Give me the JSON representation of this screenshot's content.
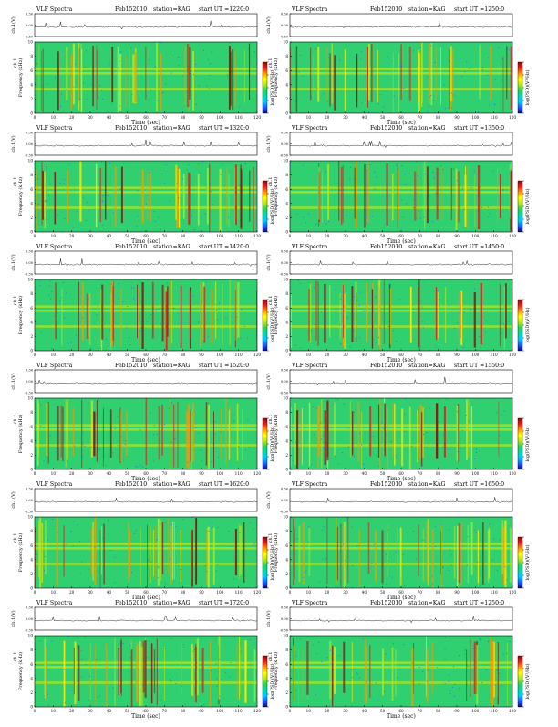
{
  "colors": {
    "background": "#ffffff",
    "axis": "#000000",
    "colorbar_stops": [
      "#0a0a8c",
      "#1e5aff",
      "#00c8ff",
      "#00d8b4",
      "#28d25a",
      "#b4e61e",
      "#ffff00",
      "#ff9600",
      "#e61e1e",
      "#8c0a0a"
    ],
    "spectrum_base": "#30d070",
    "burst_colors": [
      "#e02020",
      "#ffe600",
      "#b4e61e",
      "#ff9600",
      "#8c1010"
    ]
  },
  "labels": {
    "x_title": "Time (sec)",
    "upper_ylabel": "ch.1(V)",
    "lower_ylabel_top": "ch.1",
    "lower_ylabel_bottom": "Frequency (kHz)",
    "colorbar_label": "log(PSD)(V²/Hz)"
  },
  "chart_data": [
    {
      "type": "heatmap",
      "title": "VLF Spectra",
      "date": "Feb152010",
      "station": "station=KAG",
      "start": "start UT =1220:0",
      "xlim": [
        0,
        120
      ],
      "ylim": [
        0,
        10
      ],
      "upper_ylim": [
        -0.3,
        0.3
      ],
      "x_ticks": [
        "0",
        "10",
        "20",
        "30",
        "40",
        "50",
        "60",
        "70",
        "80",
        "90",
        "100",
        "110",
        "120"
      ],
      "y_ticks": [
        "0",
        "2",
        "4",
        "6",
        "8",
        "10"
      ],
      "upper_ticks": [
        "0.30",
        "0.00",
        "-0.30"
      ],
      "colorbar_ticks": [
        "",
        "",
        "",
        "",
        ""
      ]
    },
    {
      "type": "heatmap",
      "title": "VLF Spectra",
      "date": "Feb152010",
      "station": "station=KAG",
      "start": "start UT =1250:0",
      "xlim": [
        0,
        120
      ],
      "ylim": [
        0,
        10
      ],
      "upper_ylim": [
        -0.3,
        0.3
      ],
      "x_ticks": [
        "0",
        "10",
        "20",
        "30",
        "40",
        "50",
        "60",
        "70",
        "80",
        "90",
        "100",
        "110",
        "120"
      ],
      "y_ticks": [
        "0",
        "2",
        "4",
        "6",
        "8",
        "10"
      ],
      "upper_ticks": [
        "0.30",
        "0.00",
        "-0.30"
      ],
      "colorbar_ticks": [
        "",
        "",
        "",
        "",
        ""
      ]
    },
    {
      "type": "heatmap",
      "title": "VLF Spectra",
      "date": "Feb152010",
      "station": "station=KAG",
      "start": "start UT =1320:0",
      "xlim": [
        0,
        120
      ],
      "ylim": [
        0,
        10
      ],
      "upper_ylim": [
        -0.3,
        0.3
      ],
      "x_ticks": [
        "0",
        "10",
        "20",
        "30",
        "40",
        "50",
        "60",
        "70",
        "80",
        "90",
        "100",
        "110",
        "120"
      ],
      "y_ticks": [
        "0",
        "2",
        "4",
        "6",
        "8",
        "10"
      ],
      "upper_ticks": [
        "0.30",
        "0.00",
        "-0.30"
      ],
      "colorbar_ticks": [
        "",
        "",
        "",
        "",
        ""
      ]
    },
    {
      "type": "heatmap",
      "title": "VLF Spectra",
      "date": "Feb152010",
      "station": "station=KAG",
      "start": "start UT =1350:0",
      "xlim": [
        0,
        120
      ],
      "ylim": [
        0,
        10
      ],
      "upper_ylim": [
        -0.3,
        0.3
      ],
      "x_ticks": [
        "0",
        "10",
        "20",
        "30",
        "40",
        "50",
        "60",
        "70",
        "80",
        "90",
        "100",
        "110",
        "120"
      ],
      "y_ticks": [
        "0",
        "2",
        "4",
        "6",
        "8",
        "10"
      ],
      "upper_ticks": [
        "0.30",
        "0.00",
        "-0.30"
      ],
      "colorbar_ticks": [
        "",
        "",
        "",
        "",
        ""
      ]
    },
    {
      "type": "heatmap",
      "title": "VLF Spectra",
      "date": "Feb152010",
      "station": "station=KAG",
      "start": "start UT =1420:0",
      "xlim": [
        0,
        120
      ],
      "ylim": [
        0,
        10
      ],
      "upper_ylim": [
        -0.3,
        0.3
      ],
      "x_ticks": [
        "0",
        "10",
        "20",
        "30",
        "40",
        "50",
        "60",
        "70",
        "80",
        "90",
        "100",
        "110",
        "120"
      ],
      "y_ticks": [
        "0",
        "2",
        "4",
        "6",
        "8",
        "10"
      ],
      "upper_ticks": [
        "0.30",
        "0.00",
        "-0.30"
      ],
      "colorbar_ticks": [
        "",
        "",
        "",
        "",
        ""
      ]
    },
    {
      "type": "heatmap",
      "title": "VLF Spectra",
      "date": "Feb152010",
      "station": "station=KAG",
      "start": "start UT =1450:0",
      "xlim": [
        0,
        120
      ],
      "ylim": [
        0,
        10
      ],
      "upper_ylim": [
        -0.3,
        0.3
      ],
      "x_ticks": [
        "0",
        "10",
        "20",
        "30",
        "40",
        "50",
        "60",
        "70",
        "80",
        "90",
        "100",
        "110",
        "120"
      ],
      "y_ticks": [
        "0",
        "2",
        "4",
        "6",
        "8",
        "10"
      ],
      "upper_ticks": [
        "0.30",
        "0.00",
        "-0.30"
      ],
      "colorbar_ticks": [
        "",
        "",
        "",
        "",
        ""
      ]
    },
    {
      "type": "heatmap",
      "title": "VLF Spectra",
      "date": "Feb152010",
      "station": "station=KAG",
      "start": "start UT =1520:0",
      "xlim": [
        0,
        120
      ],
      "ylim": [
        0,
        10
      ],
      "upper_ylim": [
        -0.3,
        0.3
      ],
      "x_ticks": [
        "0",
        "10",
        "20",
        "30",
        "40",
        "50",
        "60",
        "70",
        "80",
        "90",
        "100",
        "110",
        "120"
      ],
      "y_ticks": [
        "0",
        "2",
        "4",
        "6",
        "8",
        "10"
      ],
      "upper_ticks": [
        "0.30",
        "0.00",
        "-0.30"
      ],
      "colorbar_ticks": [
        "",
        "",
        "",
        "",
        ""
      ]
    },
    {
      "type": "heatmap",
      "title": "VLF Spectra",
      "date": "Feb152010",
      "station": "station=KAG",
      "start": "start UT =1550:0",
      "xlim": [
        0,
        120
      ],
      "ylim": [
        0,
        10
      ],
      "upper_ylim": [
        -0.3,
        0.3
      ],
      "x_ticks": [
        "0",
        "10",
        "20",
        "30",
        "40",
        "50",
        "60",
        "70",
        "80",
        "90",
        "100",
        "110",
        "120"
      ],
      "y_ticks": [
        "0",
        "2",
        "4",
        "6",
        "8",
        "10"
      ],
      "upper_ticks": [
        "0.30",
        "0.00",
        "-0.30"
      ],
      "colorbar_ticks": [
        "",
        "",
        "",
        "",
        ""
      ]
    },
    {
      "type": "heatmap",
      "title": "VLF Spectra",
      "date": "Feb152010",
      "station": "station=KAG",
      "start": "start UT =1620:0",
      "xlim": [
        0,
        120
      ],
      "ylim": [
        0,
        10
      ],
      "upper_ylim": [
        -0.3,
        0.3
      ],
      "x_ticks": [
        "0",
        "10",
        "20",
        "30",
        "40",
        "50",
        "60",
        "70",
        "80",
        "90",
        "100",
        "110",
        "120"
      ],
      "y_ticks": [
        "0",
        "2",
        "4",
        "6",
        "8",
        "10"
      ],
      "upper_ticks": [
        "0.30",
        "0.00",
        "-0.30"
      ],
      "colorbar_ticks": [
        "",
        "",
        "",
        "",
        ""
      ]
    },
    {
      "type": "heatmap",
      "title": "VLF Spectra",
      "date": "Feb152010",
      "station": "station=KAG",
      "start": "start UT =1650:0",
      "xlim": [
        0,
        120
      ],
      "ylim": [
        0,
        10
      ],
      "upper_ylim": [
        -0.3,
        0.3
      ],
      "x_ticks": [
        "0",
        "10",
        "20",
        "30",
        "40",
        "50",
        "60",
        "70",
        "80",
        "90",
        "100",
        "110",
        "120"
      ],
      "y_ticks": [
        "0",
        "2",
        "4",
        "6",
        "8",
        "10"
      ],
      "upper_ticks": [
        "0.30",
        "0.00",
        "-0.30"
      ],
      "colorbar_ticks": [
        "",
        "",
        "",
        "",
        ""
      ]
    },
    {
      "type": "heatmap",
      "title": "VLF Spectra",
      "date": "Feb152010",
      "station": "station=KAG",
      "start": "start UT =1720:0",
      "xlim": [
        0,
        120
      ],
      "ylim": [
        0,
        10
      ],
      "upper_ylim": [
        -0.3,
        0.3
      ],
      "x_ticks": [
        "0",
        "10",
        "20",
        "30",
        "40",
        "50",
        "60",
        "70",
        "80",
        "90",
        "100",
        "110",
        "120"
      ],
      "y_ticks": [
        "0",
        "2",
        "4",
        "6",
        "8",
        "10"
      ],
      "upper_ticks": [
        "0.30",
        "0.00",
        "-0.30"
      ],
      "colorbar_ticks": [
        "",
        "",
        "",
        "",
        ""
      ]
    },
    {
      "type": "heatmap",
      "title": "VLF Spectra",
      "date": "Feb152010",
      "station": "station=KAG",
      "start": "start UT =1250:0",
      "xlim": [
        0,
        120
      ],
      "ylim": [
        0,
        10
      ],
      "upper_ylim": [
        -0.3,
        0.3
      ],
      "x_ticks": [
        "0",
        "10",
        "20",
        "30",
        "40",
        "50",
        "60",
        "70",
        "80",
        "90",
        "100",
        "110",
        "120"
      ],
      "y_ticks": [
        "0",
        "2",
        "4",
        "6",
        "8",
        "10"
      ],
      "upper_ticks": [
        "0.30",
        "0.00",
        "-0.30"
      ],
      "colorbar_ticks": [
        "",
        "",
        "",
        "",
        ""
      ]
    }
  ]
}
